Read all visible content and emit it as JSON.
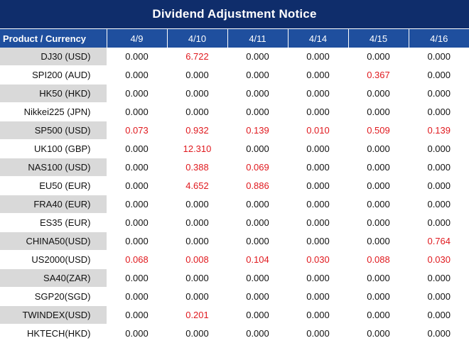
{
  "title": "Dividend Adjustment Notice",
  "header": {
    "product_label": "Product / Currency",
    "dates": [
      "4/9",
      "4/10",
      "4/11",
      "4/14",
      "4/15",
      "4/16"
    ]
  },
  "rows": [
    {
      "product": "DJ30 (USD)",
      "values": [
        "0.000",
        "6.722",
        "0.000",
        "0.000",
        "0.000",
        "0.000"
      ]
    },
    {
      "product": "SPI200 (AUD)",
      "values": [
        "0.000",
        "0.000",
        "0.000",
        "0.000",
        "0.367",
        "0.000"
      ]
    },
    {
      "product": "HK50 (HKD)",
      "values": [
        "0.000",
        "0.000",
        "0.000",
        "0.000",
        "0.000",
        "0.000"
      ]
    },
    {
      "product": "Nikkei225 (JPN)",
      "values": [
        "0.000",
        "0.000",
        "0.000",
        "0.000",
        "0.000",
        "0.000"
      ]
    },
    {
      "product": "SP500 (USD)",
      "values": [
        "0.073",
        "0.932",
        "0.139",
        "0.010",
        "0.509",
        "0.139"
      ]
    },
    {
      "product": "UK100 (GBP)",
      "values": [
        "0.000",
        "12.310",
        "0.000",
        "0.000",
        "0.000",
        "0.000"
      ]
    },
    {
      "product": "NAS100 (USD)",
      "values": [
        "0.000",
        "0.388",
        "0.069",
        "0.000",
        "0.000",
        "0.000"
      ]
    },
    {
      "product": "EU50 (EUR)",
      "values": [
        "0.000",
        "4.652",
        "0.886",
        "0.000",
        "0.000",
        "0.000"
      ]
    },
    {
      "product": "FRA40 (EUR)",
      "values": [
        "0.000",
        "0.000",
        "0.000",
        "0.000",
        "0.000",
        "0.000"
      ]
    },
    {
      "product": "ES35 (EUR)",
      "values": [
        "0.000",
        "0.000",
        "0.000",
        "0.000",
        "0.000",
        "0.000"
      ]
    },
    {
      "product": "CHINA50(USD)",
      "values": [
        "0.000",
        "0.000",
        "0.000",
        "0.000",
        "0.000",
        "0.764"
      ]
    },
    {
      "product": "US2000(USD)",
      "values": [
        "0.068",
        "0.008",
        "0.104",
        "0.030",
        "0.088",
        "0.030"
      ]
    },
    {
      "product": "SA40(ZAR)",
      "values": [
        "0.000",
        "0.000",
        "0.000",
        "0.000",
        "0.000",
        "0.000"
      ]
    },
    {
      "product": "SGP20(SGD)",
      "values": [
        "0.000",
        "0.000",
        "0.000",
        "0.000",
        "0.000",
        "0.000"
      ]
    },
    {
      "product": "TWINDEX(USD)",
      "values": [
        "0.000",
        "0.201",
        "0.000",
        "0.000",
        "0.000",
        "0.000"
      ]
    },
    {
      "product": "HKTECH(HKD)",
      "values": [
        "0.000",
        "0.000",
        "0.000",
        "0.000",
        "0.000",
        "0.000"
      ]
    }
  ],
  "colors": {
    "title_bg": "#0f2d6b",
    "header_bg": "#1f4f9e",
    "shaded_row": "#d9d9d9",
    "nonzero_value": "#e0191e"
  }
}
